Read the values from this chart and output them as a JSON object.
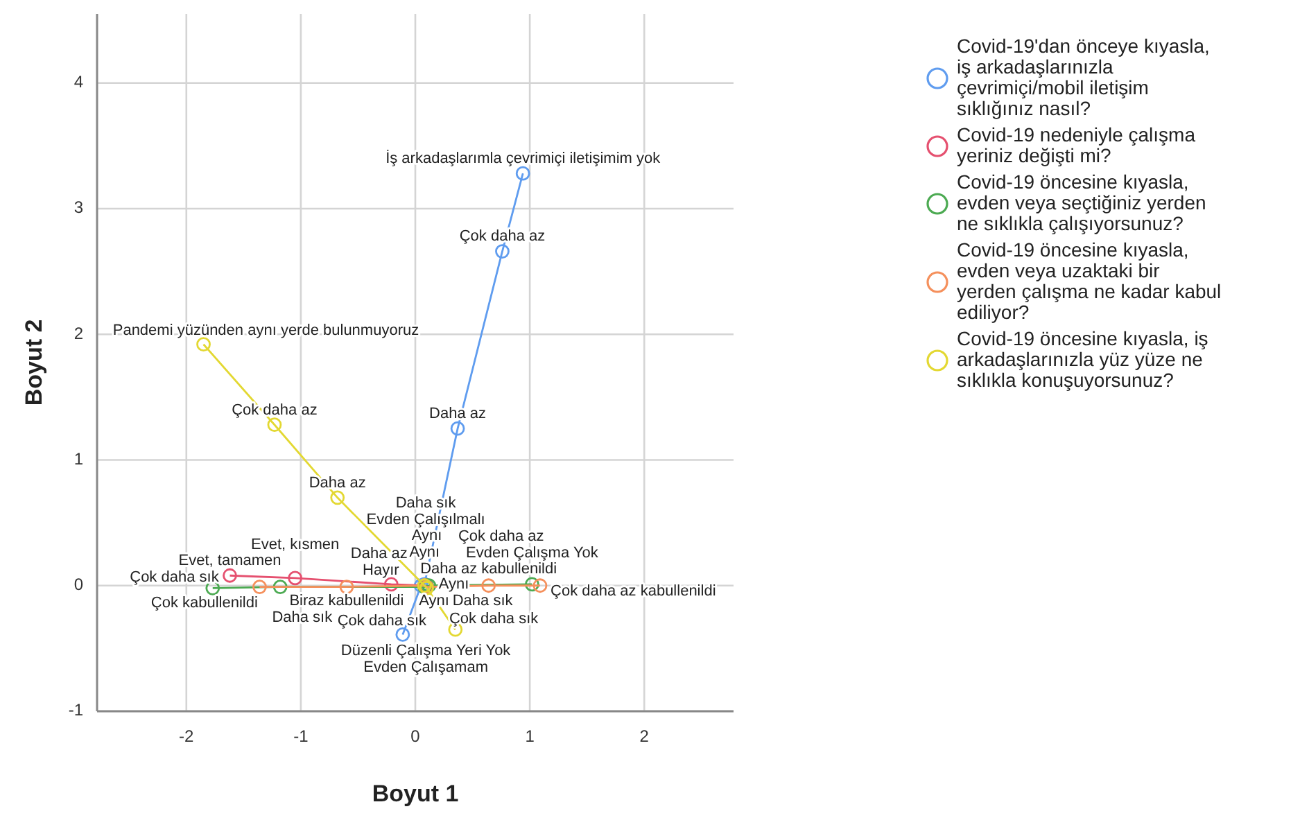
{
  "chart_data": {
    "type": "line",
    "xlabel": "Boyut 1",
    "ylabel": "Boyut 2",
    "xlim": [
      -2.78,
      2.78
    ],
    "ylim": [
      -1,
      4.55
    ],
    "xticks": [
      -2,
      -1,
      0,
      1,
      2
    ],
    "yticks": [
      -1,
      0,
      1,
      2,
      3,
      4
    ],
    "grid": true,
    "marker": "circle",
    "legend": "top right",
    "series": [
      {
        "name": "Covid-19'dan önceye kıyasla, iş arkadaşlarınızla çevrimiçi/mobil iletişim sıklığınız nasıl?",
        "color": "#5f9cef",
        "x": [
          -0.11,
          0.05,
          0.08,
          0.37,
          0.76,
          0.94
        ],
        "values": [
          -0.39,
          0.0,
          0.01,
          1.25,
          2.66,
          3.28
        ],
        "value_labels": [
          "Çok daha sık",
          null,
          "Aynı",
          "Daha az",
          "Çok daha az",
          "İş arkadaşlarımla çevrimiçi iletişimim yok"
        ]
      },
      {
        "name": "Covid-19 nedeniyle çalışma yeriniz değişti mi?",
        "color": "#e5506f",
        "x": [
          -1.62,
          -1.05,
          -0.21,
          0.09
        ],
        "values": [
          0.08,
          0.06,
          0.01,
          0.0
        ],
        "value_labels": [
          "Evet, tamamen",
          "Evet, kısmen",
          "Hayır",
          null
        ]
      },
      {
        "name": "Covid-19 öncesine kıyasla, evden veya seçtiğiniz yerden ne sıklıkla çalışıyorsunuz?",
        "color": "#4caa52",
        "x": [
          -1.77,
          -1.18,
          0.08,
          0.1,
          0.1,
          0.12,
          1.02
        ],
        "values": [
          -0.02,
          -0.01,
          -0.01,
          0.0,
          -0.01,
          0.0,
          0.01
        ],
        "value_labels": [
          "Çok daha sık",
          "Daha sık",
          null,
          "Aynı",
          null,
          null,
          "Evden Çalışma Yok"
        ]
      },
      {
        "name": "Covid-19 öncesine kıyasla, evden veya uzaktaki bir yerden çalışma ne kadar kabul ediliyor?",
        "color": "#f5905c",
        "x": [
          -1.36,
          -0.6,
          0.08,
          0.1,
          0.64,
          1.09
        ],
        "values": [
          -0.01,
          -0.01,
          0.0,
          -0.01,
          0.0,
          0.0
        ],
        "value_labels": [
          "Çok kabullenildi",
          "Biraz kabullenildi",
          "Aynı",
          null,
          "Daha az kabullenildi",
          "Çok daha az kabullenildi"
        ]
      },
      {
        "name": "Covid-19 öncesine kıyasla, iş arkadaşlarınızla yüz yüze ne sıklıkla konuşuyorsunuz?",
        "color": "#e3d832",
        "x": [
          -1.85,
          -1.23,
          -0.68,
          0.08,
          0.1,
          0.35
        ],
        "values": [
          1.92,
          1.28,
          0.7,
          0.0,
          -0.02,
          -0.35
        ],
        "value_labels": [
          "Pandemi yüzünden aynı yerde bulunmuyoruz",
          "Çok daha az",
          "Daha az",
          "Aynı",
          null,
          "Çok daha sık"
        ]
      }
    ],
    "annotations": [
      "Düzenli Çalışma Yeri Yok",
      "Daha sık",
      "Evden Çalışılmalı",
      "Daha az",
      "Çok daha az",
      "Evden Çalışamam",
      "Daha sık"
    ]
  }
}
